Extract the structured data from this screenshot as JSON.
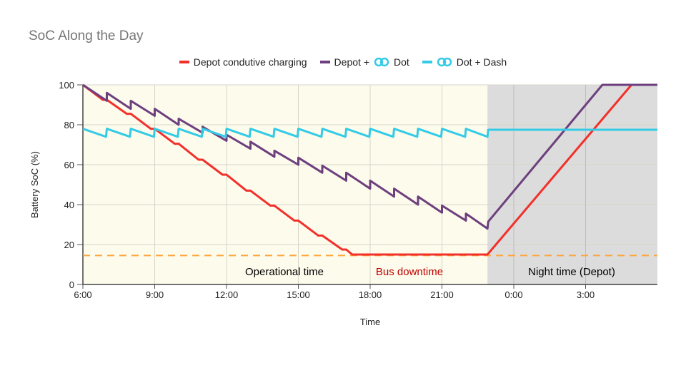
{
  "title": "SoC Along the Day",
  "chart_data": {
    "type": "line",
    "title": "SoC Along the Day",
    "xlabel": "Time",
    "ylabel": "Battery SoC (%)",
    "xlim": [
      "6:00",
      "6:00 (next day)"
    ],
    "ylim": [
      0,
      100
    ],
    "x_ticks": [
      "6:00",
      "9:00",
      "12:00",
      "15:00",
      "18:00",
      "21:00",
      "0:00",
      "3:00"
    ],
    "y_ticks": [
      0,
      20,
      40,
      60,
      80,
      100
    ],
    "grid": true,
    "legend": "top-center",
    "regions": [
      {
        "label": "Operational time",
        "start": "6:00",
        "end": "22:54",
        "color": "#fdfbec",
        "label_color": "#000000"
      },
      {
        "label": "Bus downtime",
        "start": "17:15",
        "end": "22:54",
        "color": "#fdfbec",
        "label_color": "#c00000"
      },
      {
        "label": "Night time (Depot)",
        "start": "22:54",
        "end": "6:00",
        "color": "#dcdcdc",
        "label_color": "#000000"
      }
    ],
    "threshold": {
      "value": 14.5,
      "color": "#ffa53a",
      "style": "dashed"
    },
    "series": [
      {
        "name": "Depot condutive charging",
        "color": "#f2302b",
        "points": [
          [
            "6:00",
            100
          ],
          [
            "6:50",
            92.5
          ],
          [
            "7:00",
            92.5
          ],
          [
            "7:50",
            85.5
          ],
          [
            "8:00",
            85.5
          ],
          [
            "8:50",
            78
          ],
          [
            "9:00",
            78
          ],
          [
            "9:50",
            70.5
          ],
          [
            "10:00",
            70.5
          ],
          [
            "10:50",
            62.5
          ],
          [
            "11:00",
            62.5
          ],
          [
            "11:50",
            55
          ],
          [
            "12:00",
            55
          ],
          [
            "12:50",
            47
          ],
          [
            "13:00",
            47
          ],
          [
            "13:50",
            39.5
          ],
          [
            "14:00",
            39.5
          ],
          [
            "14:50",
            32
          ],
          [
            "15:00",
            32
          ],
          [
            "15:50",
            24.5
          ],
          [
            "16:00",
            24.5
          ],
          [
            "16:50",
            17.5
          ],
          [
            "17:00",
            17.5
          ],
          [
            "17:15",
            15
          ],
          [
            "22:54",
            15
          ],
          [
            "4:55",
            100
          ],
          [
            "6:00",
            100
          ]
        ]
      },
      {
        "name": "Depot + Dot",
        "color": "#6d3f7e",
        "points": [
          [
            "6:00",
            100
          ],
          [
            "7:00",
            92
          ],
          [
            "7:00",
            96
          ],
          [
            "8:00",
            88
          ],
          [
            "8:00",
            92
          ],
          [
            "9:00",
            84.5
          ],
          [
            "9:00",
            88
          ],
          [
            "10:00",
            80
          ],
          [
            "10:00",
            83
          ],
          [
            "11:00",
            76
          ],
          [
            "11:00",
            79
          ],
          [
            "12:00",
            72
          ],
          [
            "12:00",
            75
          ],
          [
            "13:00",
            68
          ],
          [
            "13:00",
            71.5
          ],
          [
            "14:00",
            64
          ],
          [
            "14:00",
            67
          ],
          [
            "15:00",
            60
          ],
          [
            "15:00",
            63.5
          ],
          [
            "16:00",
            56
          ],
          [
            "16:00",
            59.5
          ],
          [
            "17:00",
            52
          ],
          [
            "17:00",
            56
          ],
          [
            "18:00",
            48
          ],
          [
            "18:00",
            52
          ],
          [
            "19:00",
            44
          ],
          [
            "19:00",
            48
          ],
          [
            "20:00",
            40
          ],
          [
            "20:00",
            44
          ],
          [
            "21:00",
            36
          ],
          [
            "21:00",
            39.5
          ],
          [
            "22:00",
            32
          ],
          [
            "22:00",
            35.5
          ],
          [
            "22:54",
            28
          ],
          [
            "22:56",
            31.5
          ],
          [
            "3:42",
            100
          ],
          [
            "6:00",
            100
          ]
        ]
      },
      {
        "name": "Dot + Dash",
        "color": "#33cbe6",
        "points": [
          [
            "6:00",
            78
          ],
          [
            "6:58",
            74
          ],
          [
            "7:00",
            78
          ],
          [
            "7:58",
            74
          ],
          [
            "8:00",
            78
          ],
          [
            "8:58",
            74
          ],
          [
            "9:00",
            78
          ],
          [
            "9:58",
            74
          ],
          [
            "10:00",
            78
          ],
          [
            "10:58",
            74
          ],
          [
            "11:00",
            78
          ],
          [
            "11:58",
            74
          ],
          [
            "12:00",
            78
          ],
          [
            "12:58",
            74
          ],
          [
            "13:00",
            78
          ],
          [
            "13:58",
            74
          ],
          [
            "14:00",
            78
          ],
          [
            "14:58",
            74
          ],
          [
            "15:00",
            78
          ],
          [
            "15:58",
            74
          ],
          [
            "16:00",
            78
          ],
          [
            "16:58",
            74
          ],
          [
            "17:00",
            78
          ],
          [
            "17:58",
            74
          ],
          [
            "18:00",
            78
          ],
          [
            "18:58",
            74
          ],
          [
            "19:00",
            78
          ],
          [
            "19:58",
            74
          ],
          [
            "20:00",
            78
          ],
          [
            "20:58",
            74
          ],
          [
            "21:00",
            78
          ],
          [
            "21:58",
            74
          ],
          [
            "22:00",
            78
          ],
          [
            "22:54",
            74
          ],
          [
            "22:56",
            77.5
          ],
          [
            "6:00",
            77.5
          ]
        ]
      }
    ],
    "legend_entries": [
      {
        "prefix": "Depot condutive charging",
        "logo": false,
        "suffix": ""
      },
      {
        "prefix": "Depot +",
        "logo": true,
        "suffix": "Dot"
      },
      {
        "prefix": "",
        "logo": true,
        "suffix": "Dot + Dash"
      }
    ],
    "logo_color": "#33cbe6"
  }
}
